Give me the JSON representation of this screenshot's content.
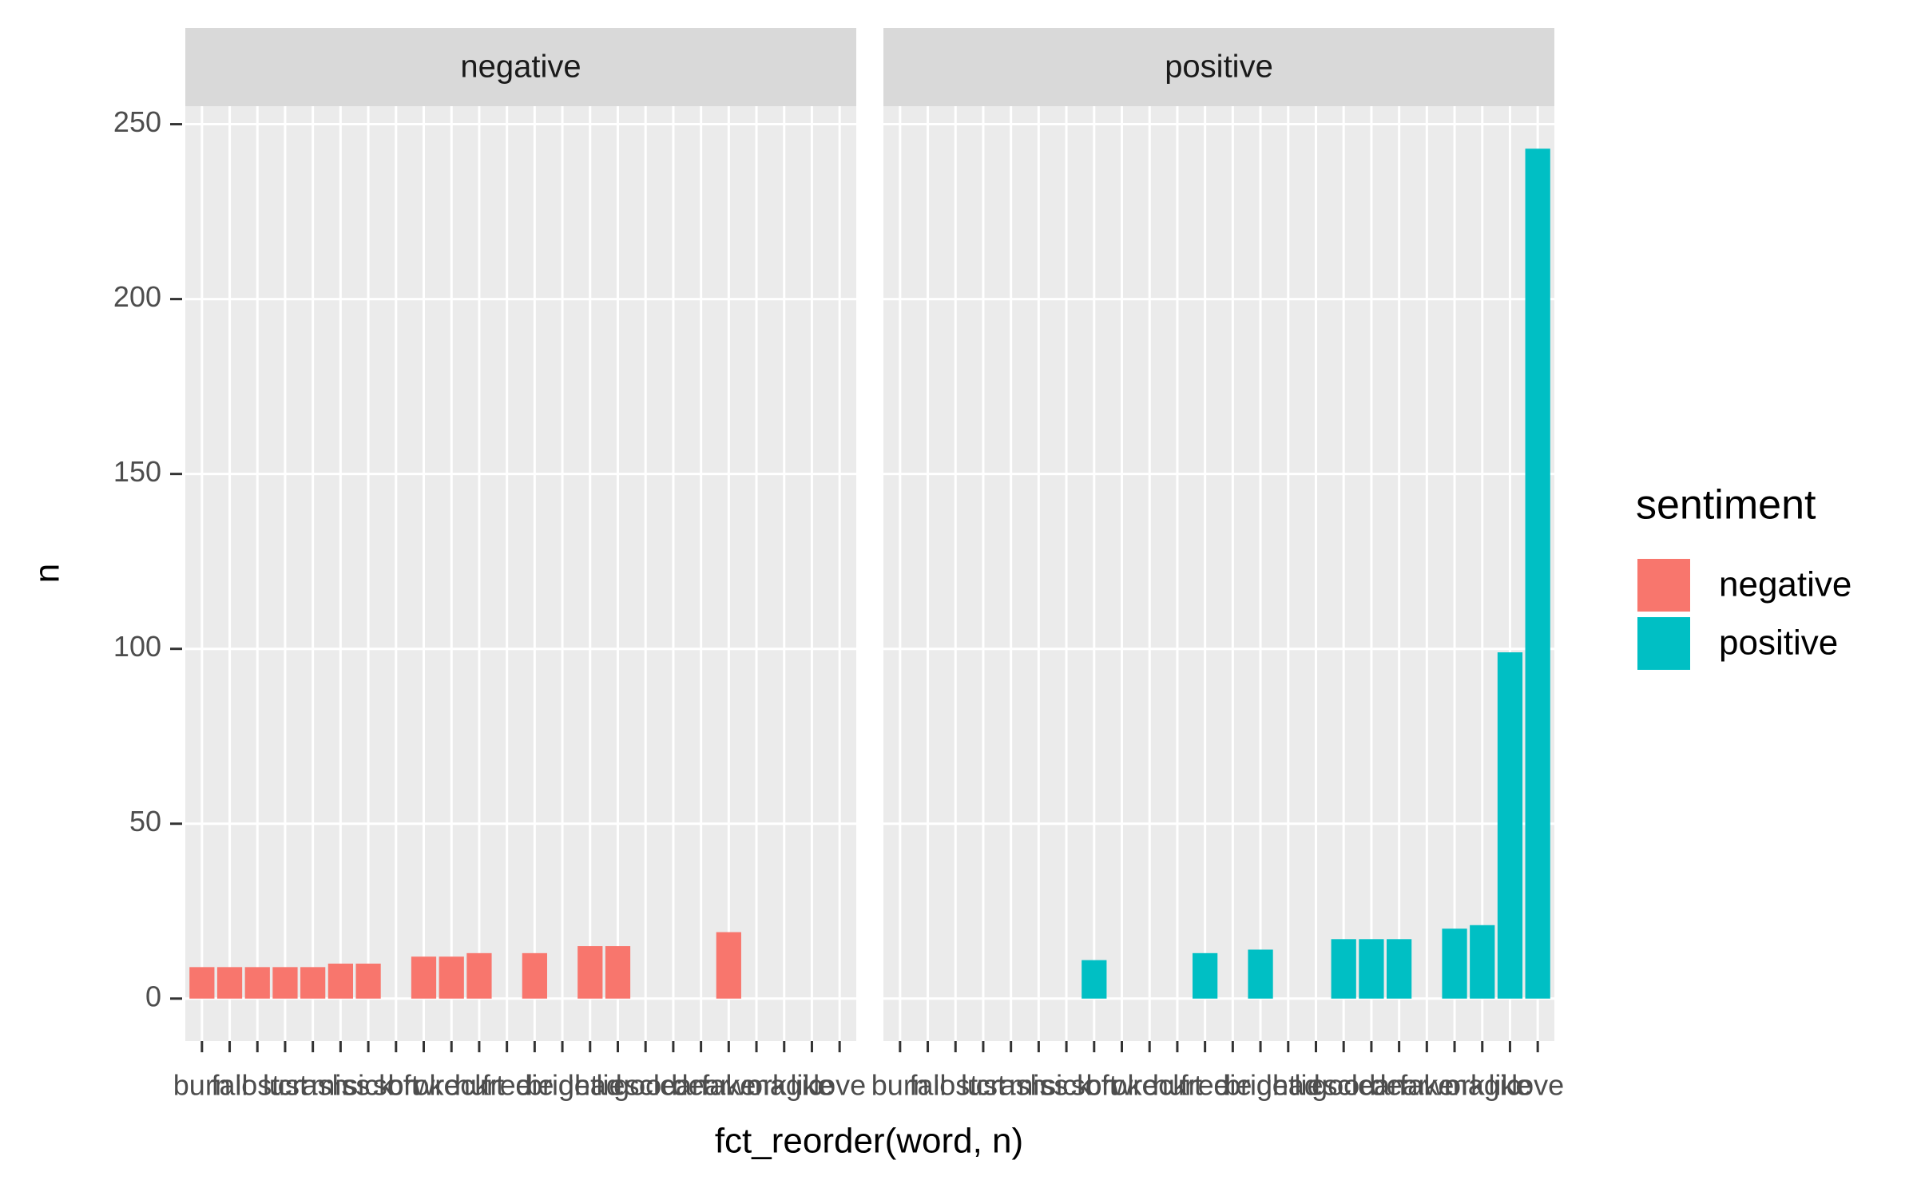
{
  "chart_data": {
    "type": "bar",
    "facet_by": "series",
    "categories": [
      "burn",
      "fail",
      "lost",
      "lust",
      "crash",
      "miss",
      "sick",
      "soft",
      "broke",
      "wreck",
      "hurt",
      "free",
      "die",
      "bright",
      "dead",
      "lies",
      "good",
      "clean",
      "dear",
      "fake",
      "work",
      "magic",
      "like",
      "love"
    ],
    "series": [
      {
        "name": "negative",
        "color": "#F8766D",
        "values": [
          9,
          9,
          9,
          9,
          9,
          10,
          10,
          null,
          12,
          12,
          13,
          null,
          13,
          null,
          15,
          15,
          null,
          null,
          null,
          19,
          null,
          null,
          null,
          null
        ]
      },
      {
        "name": "positive",
        "color": "#00BFC4",
        "values": [
          null,
          null,
          null,
          null,
          null,
          null,
          null,
          11,
          null,
          null,
          null,
          13,
          null,
          14,
          null,
          null,
          17,
          17,
          17,
          null,
          20,
          21,
          99,
          243
        ]
      }
    ],
    "ylim": [
      -12.15,
      255.15
    ],
    "yticks": [
      0,
      50,
      100,
      150,
      200,
      250
    ],
    "grid": true,
    "x_label": "fct_reorder(word, n)",
    "y_label": "n",
    "legend_title": "sentiment",
    "legend_position": "right"
  }
}
